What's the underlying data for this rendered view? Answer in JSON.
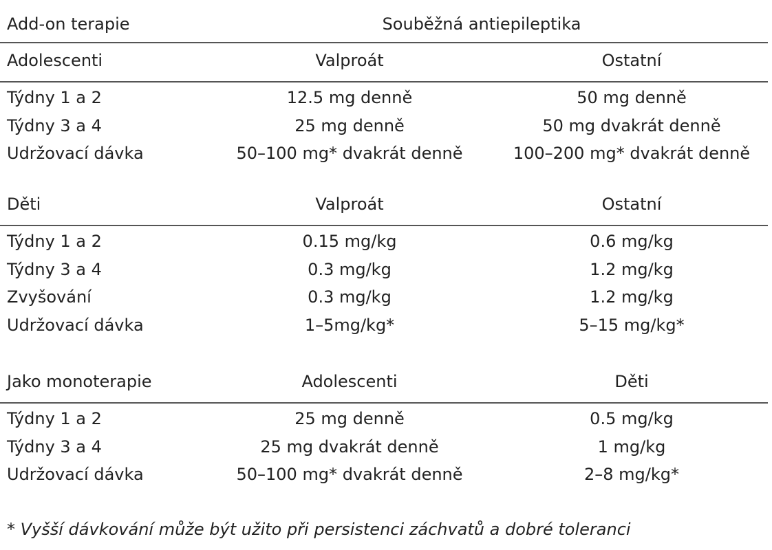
{
  "header": {
    "label": "Add-on terapie",
    "span": "Souběžná antiepileptika"
  },
  "sections": [
    {
      "columns": [
        "Adolescenti",
        "Valproát",
        "Ostatní"
      ],
      "rows": [
        [
          "Týdny 1 a 2",
          "12.5 mg denně",
          "50 mg denně"
        ],
        [
          "Týdny 3 a 4",
          "25 mg denně",
          "50 mg dvakrát denně"
        ],
        [
          "Udržovací dávka",
          "50–100 mg* dvakrát denně",
          "100–200 mg* dvakrát denně"
        ]
      ]
    },
    {
      "columns": [
        "Děti",
        "Valproát",
        "Ostatní"
      ],
      "rows": [
        [
          "Týdny 1 a 2",
          "0.15 mg/kg",
          "0.6 mg/kg"
        ],
        [
          "Týdny 3 a 4",
          "0.3 mg/kg",
          "1.2 mg/kg"
        ],
        [
          "Zvyšování",
          "0.3 mg/kg",
          "1.2 mg/kg"
        ],
        [
          "Udržovací dávka",
          "1–5mg/kg*",
          "5–15 mg/kg*"
        ]
      ]
    },
    {
      "columns": [
        "Jako monoterapie",
        "Adolescenti",
        "Děti"
      ],
      "rows": [
        [
          "Týdny 1 a 2",
          "25 mg denně",
          "0.5 mg/kg"
        ],
        [
          "Týdny 3 a 4",
          "25 mg dvakrát denně",
          "1 mg/kg"
        ],
        [
          "Udržovací dávka",
          "50–100 mg* dvakrát denně",
          "2–8 mg/kg*"
        ]
      ]
    }
  ],
  "footnote": "* Vyšší dávkování může být užito při persistenci záchvatů a dobré toleranci"
}
